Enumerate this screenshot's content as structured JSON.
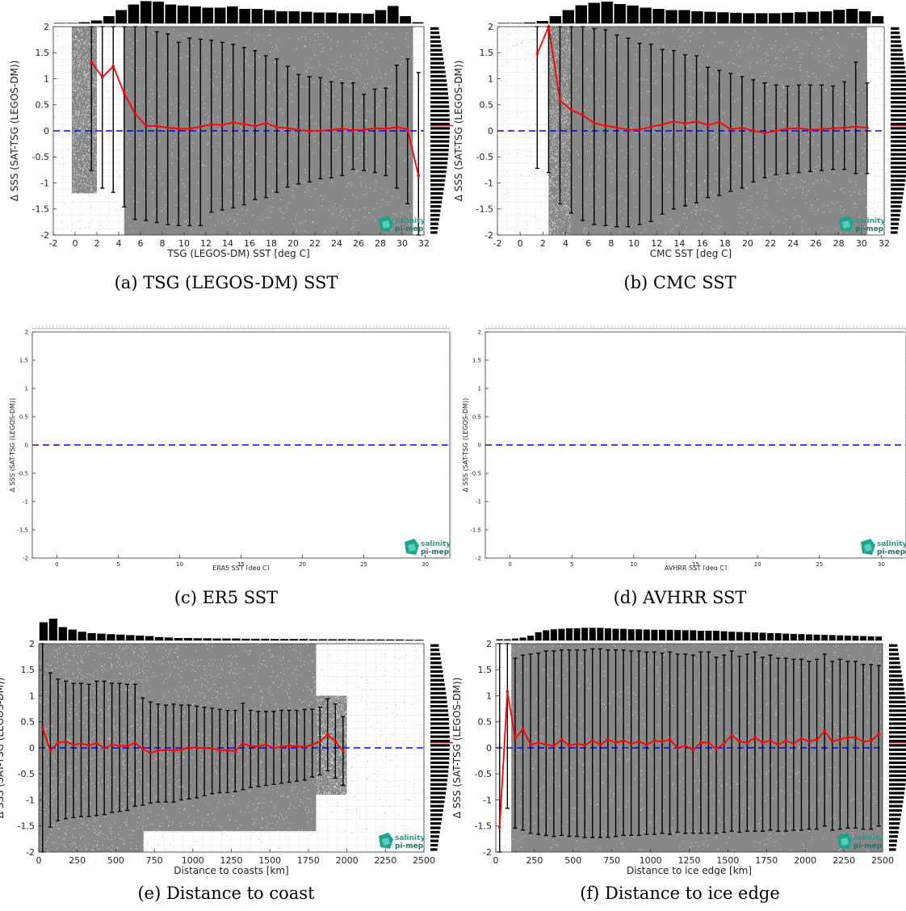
{
  "logo": {
    "line1": "salinity",
    "line2": "pi-mep"
  },
  "colors": {
    "scatter": "#7f7f7f",
    "mean_line": "#ff0000",
    "zero_line": "#0000ff",
    "error_bar": "#000000",
    "histogram": "#000000"
  },
  "chart_data": [
    {
      "id": "a",
      "type": "scatter",
      "caption": "(a) TSG (LEGOS-DM) SST",
      "xlabel": "TSG (LEGOS-DM) SST [deg C]",
      "ylabel": "Δ SSS (SAT-TSG (LEGOS-DM))",
      "xlim": [
        -2,
        32
      ],
      "ylim": [
        -2,
        2
      ],
      "xticks": [
        -2,
        0,
        2,
        4,
        6,
        8,
        10,
        12,
        14,
        16,
        18,
        20,
        22,
        24,
        26,
        28,
        30,
        32
      ],
      "yticks": [
        -2,
        -1.5,
        -1,
        -0.5,
        0,
        0.5,
        1,
        1.5,
        2
      ],
      "has_data": true,
      "grid": true,
      "scatter_band": [
        [
          -0.3,
          2.0,
          -1.2,
          2.0
        ],
        [
          4.5,
          31.0,
          -2.0,
          2.0
        ]
      ],
      "mean_x": [
        1.5,
        2.5,
        3.5,
        4.5,
        5.5,
        6.5,
        7.5,
        8.5,
        9.5,
        10.5,
        11.5,
        12.5,
        13.5,
        14.5,
        15.5,
        16.5,
        17.5,
        18.5,
        19.5,
        20.5,
        21.5,
        22.5,
        23.5,
        24.5,
        25.5,
        26.5,
        27.5,
        28.5,
        29.5,
        30.5,
        31.5
      ],
      "mean_y": [
        1.32,
        1.03,
        1.24,
        0.72,
        0.33,
        0.1,
        0.09,
        0.06,
        0.04,
        0.04,
        0.08,
        0.12,
        0.11,
        0.16,
        0.13,
        0.09,
        0.15,
        0.07,
        0.05,
        0.02,
        0.0,
        0.0,
        0.02,
        0.04,
        0.01,
        0.02,
        0.05,
        0.04,
        0.07,
        0.03,
        -0.86
      ],
      "err_lo": [
        -0.76,
        -1.1,
        -1.18,
        -1.46,
        -1.7,
        -1.72,
        -1.76,
        -1.8,
        -1.82,
        -1.82,
        -1.82,
        -1.56,
        -1.52,
        -1.48,
        -1.42,
        -1.32,
        -1.28,
        -1.18,
        -1.08,
        -1.02,
        -0.98,
        -0.92,
        -0.9,
        -0.86,
        -0.74,
        -0.76,
        -0.8,
        -0.86,
        -1.1,
        -1.4,
        -2.0
      ],
      "err_hi": [
        2.0,
        2.0,
        2.0,
        2.0,
        2.0,
        2.0,
        1.9,
        1.86,
        1.7,
        1.78,
        1.76,
        1.74,
        1.7,
        1.66,
        1.6,
        1.54,
        1.44,
        1.38,
        1.24,
        1.08,
        1.04,
        1.02,
        0.94,
        0.92,
        0.92,
        0.7,
        0.8,
        0.82,
        1.26,
        1.38,
        1.12
      ],
      "top_hist": [
        0.02,
        0.02,
        0.05,
        0.12,
        0.3,
        0.55,
        0.78,
        0.92,
        0.9,
        0.78,
        0.74,
        0.7,
        0.65,
        0.65,
        0.7,
        0.6,
        0.6,
        0.55,
        0.5,
        0.5,
        0.48,
        0.45,
        0.45,
        0.42,
        0.42,
        0.4,
        0.55,
        0.72,
        0.3,
        0.05
      ],
      "side_hist_peak": 0.1
    },
    {
      "id": "b",
      "type": "scatter",
      "caption": "(b) CMC SST",
      "xlabel": "CMC SST [deg C]",
      "ylabel": "Δ SSS (SAT-TSG (LEGOS-DM))",
      "xlim": [
        -2,
        32
      ],
      "ylim": [
        -2,
        2
      ],
      "xticks": [
        -2,
        0,
        2,
        4,
        6,
        8,
        10,
        12,
        14,
        16,
        18,
        20,
        22,
        24,
        26,
        28,
        30,
        32
      ],
      "yticks": [
        -2,
        -1.5,
        -1,
        -0.5,
        0,
        0.5,
        1,
        1.5,
        2
      ],
      "has_data": true,
      "grid": true,
      "scatter_band": [
        [
          2.5,
          4.5,
          -2.0,
          2.0
        ],
        [
          4.5,
          30.5,
          -2.0,
          2.0
        ]
      ],
      "mean_x": [
        1.5,
        2.5,
        3.5,
        4.5,
        5.5,
        6.5,
        7.5,
        8.5,
        9.5,
        10.5,
        11.5,
        12.5,
        13.5,
        14.5,
        15.5,
        16.5,
        17.5,
        18.5,
        19.5,
        20.5,
        21.5,
        22.5,
        23.5,
        24.5,
        25.5,
        26.5,
        27.5,
        28.5,
        29.5,
        30.5
      ],
      "mean_y": [
        1.48,
        2.0,
        0.58,
        0.4,
        0.3,
        0.15,
        0.1,
        0.06,
        0.02,
        0.02,
        0.08,
        0.12,
        0.18,
        0.14,
        0.18,
        0.11,
        0.17,
        0.03,
        0.06,
        0.0,
        -0.04,
        0.0,
        0.04,
        0.05,
        0.02,
        0.03,
        0.05,
        0.06,
        0.08,
        0.06
      ],
      "err_lo": [
        -0.72,
        -0.8,
        -1.4,
        -1.58,
        -1.72,
        -1.8,
        -1.82,
        -1.84,
        -1.84,
        -1.8,
        -1.74,
        -1.6,
        -1.5,
        -1.44,
        -1.38,
        -1.28,
        -1.24,
        -1.16,
        -1.1,
        -0.98,
        -0.9,
        -0.84,
        -0.82,
        -0.8,
        -0.78,
        -0.76,
        -0.74,
        -0.74,
        -0.82,
        -0.82
      ],
      "err_hi": [
        2.0,
        2.0,
        2.0,
        2.0,
        2.0,
        1.96,
        1.94,
        1.84,
        1.78,
        1.68,
        1.66,
        1.56,
        1.54,
        1.46,
        1.44,
        1.22,
        1.16,
        1.1,
        1.04,
        0.98,
        0.92,
        0.88,
        0.86,
        0.88,
        0.88,
        0.88,
        0.86,
        0.94,
        1.32,
        0.92
      ],
      "top_hist": [
        0.02,
        0.02,
        0.04,
        0.1,
        0.3,
        0.55,
        0.75,
        0.85,
        0.9,
        0.8,
        0.74,
        0.65,
        0.6,
        0.55,
        0.55,
        0.5,
        0.48,
        0.46,
        0.44,
        0.42,
        0.42,
        0.42,
        0.44,
        0.46,
        0.48,
        0.5,
        0.56,
        0.6,
        0.5,
        0.3
      ],
      "side_hist_peak": 0.1
    },
    {
      "id": "c",
      "type": "scatter",
      "caption": "(c) ER5 SST",
      "xlabel": "ERA5 SST [deg C]",
      "ylabel": "Δ SSS (SAT-TSG (LEGOS-DM))",
      "xlim": [
        -2,
        32
      ],
      "ylim": [
        -2,
        2
      ],
      "xticks": [
        0,
        5,
        10,
        15,
        20,
        25,
        30
      ],
      "yticks": [
        -2,
        -1.5,
        -1,
        -0.5,
        0,
        0.5,
        1,
        1.5,
        2
      ],
      "has_data": false,
      "grid": false
    },
    {
      "id": "d",
      "type": "scatter",
      "caption": "(d) AVHRR SST",
      "xlabel": "AVHRR SST [deg C]",
      "ylabel": "Δ SSS (SAT-TSG (LEGOS-DM))",
      "xlim": [
        -2,
        32
      ],
      "ylim": [
        -2,
        2
      ],
      "xticks": [
        0,
        5,
        10,
        15,
        20,
        25,
        30
      ],
      "yticks": [
        -2,
        -1.5,
        -1,
        -0.5,
        0,
        0.5,
        1,
        1.5,
        2
      ],
      "has_data": false,
      "grid": false
    },
    {
      "id": "e",
      "type": "scatter",
      "caption": "(e) Distance to coast",
      "xlabel": "Distance to coasts [km]",
      "ylabel": "Δ SSS (SAT-TSG (LEGOS-DM))",
      "xlim": [
        0,
        2500
      ],
      "ylim": [
        -2,
        2
      ],
      "xticks": [
        0,
        250,
        500,
        750,
        1000,
        1250,
        1500,
        1750,
        2000,
        2250,
        2500
      ],
      "yticks": [
        -2,
        -1.5,
        -1,
        -0.5,
        0,
        0.5,
        1,
        1.5,
        2
      ],
      "has_data": true,
      "grid": true,
      "scatter_band": [
        [
          0,
          680,
          -2.0,
          2.0
        ],
        [
          680,
          1800,
          -1.6,
          2.0
        ],
        [
          1800,
          2000,
          -0.9,
          1.0
        ]
      ],
      "mean_x": [
        25,
        75,
        125,
        175,
        225,
        275,
        325,
        375,
        425,
        475,
        525,
        575,
        625,
        675,
        725,
        775,
        825,
        875,
        925,
        975,
        1025,
        1075,
        1125,
        1175,
        1225,
        1275,
        1325,
        1375,
        1425,
        1475,
        1525,
        1575,
        1625,
        1675,
        1725,
        1775,
        1825,
        1875,
        1925,
        1975
      ],
      "mean_y": [
        0.38,
        -0.05,
        0.1,
        0.12,
        0.06,
        0.08,
        0.05,
        0.09,
        -0.01,
        0.06,
        0.04,
        0.04,
        0.09,
        -0.02,
        -0.1,
        -0.05,
        -0.04,
        -0.05,
        -0.03,
        0.0,
        0.01,
        -0.01,
        -0.01,
        -0.05,
        -0.05,
        -0.06,
        0.08,
        0.03,
        0.03,
        0.06,
        0.0,
        0.02,
        0.04,
        0.03,
        0.02,
        0.06,
        0.12,
        0.26,
        0.12,
        -0.06
      ],
      "err_lo": [
        -2.0,
        -1.52,
        -1.4,
        -1.36,
        -1.34,
        -1.32,
        -1.32,
        -1.3,
        -1.28,
        -1.24,
        -1.22,
        -1.2,
        -1.12,
        -1.1,
        -1.06,
        -1.04,
        -1.04,
        -1.04,
        -1.0,
        -0.98,
        -0.96,
        -0.92,
        -0.88,
        -0.86,
        -0.86,
        -0.84,
        -0.8,
        -0.76,
        -0.74,
        -0.72,
        -0.7,
        -0.68,
        -0.66,
        -0.64,
        -0.62,
        -0.56,
        -0.52,
        -0.44,
        -0.58,
        -0.72
      ],
      "err_hi": [
        2.0,
        1.44,
        1.32,
        1.28,
        1.24,
        1.24,
        1.22,
        1.28,
        1.28,
        1.24,
        1.24,
        1.22,
        1.22,
        0.96,
        0.88,
        0.84,
        0.82,
        0.84,
        0.82,
        0.82,
        0.8,
        0.78,
        0.76,
        0.74,
        0.72,
        0.72,
        0.86,
        0.72,
        0.7,
        0.7,
        0.7,
        0.72,
        0.72,
        0.72,
        0.74,
        0.74,
        0.78,
        0.94,
        0.84,
        0.6
      ],
      "top_hist": [
        0.75,
        0.9,
        0.55,
        0.45,
        0.36,
        0.3,
        0.28,
        0.26,
        0.24,
        0.22,
        0.2,
        0.18,
        0.14,
        0.12,
        0.1,
        0.1,
        0.09,
        0.09,
        0.08,
        0.08,
        0.08,
        0.07,
        0.07,
        0.07,
        0.06,
        0.06,
        0.06,
        0.06,
        0.05,
        0.05,
        0.05,
        0.05,
        0.05,
        0.04,
        0.04,
        0.04,
        0.04,
        0.04,
        0.03,
        0.03
      ],
      "side_hist_peak": 0.1
    },
    {
      "id": "f",
      "type": "scatter",
      "caption": "(f) Distance to ice edge",
      "xlabel": "Distance to ice edge [km]",
      "ylabel": "Δ SSS (SAT-TSG (LEGOS-DM))",
      "xlim": [
        0,
        2500
      ],
      "ylim": [
        -2,
        2
      ],
      "xticks": [
        0,
        250,
        500,
        750,
        1000,
        1250,
        1500,
        1750,
        2000,
        2250,
        2500
      ],
      "yticks": [
        -2,
        -1.5,
        -1,
        -0.5,
        0,
        0.5,
        1,
        1.5,
        2
      ],
      "has_data": true,
      "grid": true,
      "scatter_band": [
        [
          100,
          2500,
          -2.0,
          2.0
        ]
      ],
      "mean_x": [
        25,
        75,
        125,
        175,
        225,
        275,
        325,
        375,
        425,
        475,
        525,
        575,
        625,
        675,
        725,
        775,
        825,
        875,
        925,
        975,
        1025,
        1075,
        1125,
        1175,
        1225,
        1275,
        1325,
        1375,
        1425,
        1475,
        1525,
        1575,
        1625,
        1675,
        1725,
        1775,
        1825,
        1875,
        1925,
        1975,
        2025,
        2075,
        2125,
        2175,
        2225,
        2275,
        2325,
        2375,
        2425,
        2475
      ],
      "mean_y": [
        -1.52,
        1.08,
        0.18,
        0.36,
        0.06,
        0.1,
        0.06,
        0.04,
        0.16,
        0.04,
        0.08,
        0.05,
        0.14,
        0.06,
        0.16,
        0.1,
        0.14,
        0.08,
        0.12,
        0.06,
        0.14,
        0.12,
        0.16,
        0.0,
        0.04,
        -0.04,
        0.1,
        0.1,
        -0.02,
        0.08,
        0.24,
        0.12,
        0.1,
        0.2,
        0.1,
        0.14,
        0.06,
        0.14,
        0.08,
        0.18,
        0.12,
        0.16,
        0.32,
        0.12,
        0.16,
        0.2,
        0.2,
        0.12,
        0.14,
        0.26
      ],
      "err_lo": [
        -2.0,
        -1.16,
        -1.54,
        -1.58,
        -1.64,
        -1.66,
        -1.68,
        -1.7,
        -1.68,
        -1.7,
        -1.7,
        -1.72,
        -1.72,
        -1.72,
        -1.72,
        -1.7,
        -1.68,
        -1.68,
        -1.68,
        -1.66,
        -1.66,
        -1.64,
        -1.66,
        -1.62,
        -1.64,
        -1.64,
        -1.64,
        -1.64,
        -1.64,
        -1.62,
        -1.6,
        -1.62,
        -1.6,
        -1.6,
        -1.6,
        -1.58,
        -1.6,
        -1.6,
        -1.58,
        -1.58,
        -1.56,
        -1.56,
        -1.5,
        -1.58,
        -1.56,
        -1.54,
        -1.54,
        -1.56,
        -1.56,
        -1.5
      ],
      "err_hi": [
        2.0,
        2.0,
        1.72,
        1.78,
        1.8,
        1.82,
        1.86,
        1.86,
        1.88,
        1.88,
        1.88,
        1.88,
        1.9,
        1.9,
        1.88,
        1.88,
        1.88,
        1.86,
        1.86,
        1.84,
        1.84,
        1.82,
        1.84,
        1.8,
        1.8,
        1.78,
        1.84,
        1.84,
        1.74,
        1.78,
        1.86,
        1.76,
        1.8,
        1.84,
        1.74,
        1.78,
        1.72,
        1.72,
        1.7,
        1.7,
        1.66,
        1.7,
        1.8,
        1.66,
        1.7,
        1.66,
        1.66,
        1.6,
        1.6,
        1.58
      ],
      "top_hist": [
        0.05,
        0.05,
        0.08,
        0.12,
        0.2,
        0.34,
        0.42,
        0.46,
        0.48,
        0.5,
        0.5,
        0.52,
        0.52,
        0.52,
        0.5,
        0.48,
        0.48,
        0.46,
        0.46,
        0.45,
        0.44,
        0.44,
        0.44,
        0.43,
        0.42,
        0.42,
        0.4,
        0.4,
        0.4,
        0.38,
        0.36,
        0.35,
        0.34,
        0.33,
        0.32,
        0.3,
        0.3,
        0.28,
        0.27,
        0.26,
        0.25,
        0.24,
        0.23,
        0.22,
        0.21,
        0.2,
        0.19,
        0.18,
        0.17,
        0.16
      ],
      "side_hist_peak": 0.1
    }
  ]
}
